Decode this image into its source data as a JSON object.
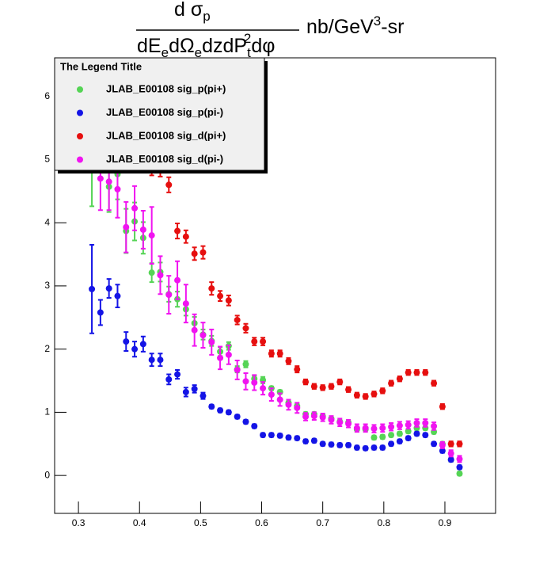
{
  "chart_data": {
    "type": "scatter",
    "title": {
      "numerator": [
        "d σ",
        "p"
      ],
      "denominator": [
        "dE",
        "e",
        "dΩ",
        "e",
        "dzdP",
        "t",
        "2",
        "dφ"
      ],
      "units": [
        "nb/GeV",
        "3",
        "-sr"
      ]
    },
    "legend": {
      "title": "The Legend Title",
      "position": "top-left"
    },
    "x": [
      0.322,
      0.336,
      0.35,
      0.364,
      0.378,
      0.392,
      0.406,
      0.42,
      0.434,
      0.448,
      0.462,
      0.476,
      0.49,
      0.504,
      0.518,
      0.532,
      0.546,
      0.56,
      0.574,
      0.588,
      0.602,
      0.616,
      0.63,
      0.644,
      0.658,
      0.672,
      0.686,
      0.7,
      0.714,
      0.728,
      0.742,
      0.756,
      0.77,
      0.784,
      0.798,
      0.812,
      0.826,
      0.84,
      0.854,
      0.868,
      0.882,
      0.896,
      0.91,
      0.924
    ],
    "series": [
      {
        "name": "JLAB_E00108 sig_p(pi+)",
        "color": "#55d455",
        "values": [
          4.86,
          null,
          4.57,
          4.77,
          3.87,
          4.02,
          3.76,
          3.21,
          3.22,
          2.87,
          2.79,
          2.63,
          2.41,
          2.23,
          2.13,
          1.96,
          2.05,
          1.68,
          1.76,
          1.53,
          1.51,
          1.38,
          1.32,
          1.15,
          1.1,
          0.97,
          0.97,
          0.94,
          0.9,
          0.85,
          0.84,
          0.73,
          0.73,
          0.6,
          0.61,
          0.64,
          0.66,
          0.7,
          0.75,
          0.75,
          0.69,
          0.5,
          0.25,
          0.03
        ],
        "errors": [
          0.6,
          null,
          0.4,
          0.4,
          0.35,
          0.3,
          0.25,
          0.15,
          0.15,
          0.12,
          0.12,
          0.1,
          0.1,
          0.08,
          0.08,
          0.07,
          0.06,
          0.05,
          0.05,
          0.05,
          0.05,
          0.03,
          0.03,
          0.03,
          0.03,
          0.03,
          0.03,
          0.03,
          0.03,
          0.03,
          0.03,
          0.03,
          0.03,
          0.03,
          0.03,
          0.03,
          0.03,
          0.03,
          0.03,
          0.03,
          0.03,
          0.03,
          0.03,
          0.03
        ]
      },
      {
        "name": "JLAB_E00108 sig_p(pi-)",
        "color": "#1414e6",
        "values": [
          2.95,
          2.58,
          2.96,
          2.84,
          2.12,
          2.0,
          2.08,
          1.83,
          1.83,
          1.52,
          1.6,
          1.32,
          1.37,
          1.26,
          1.09,
          1.03,
          1.0,
          0.93,
          0.85,
          0.78,
          0.64,
          0.64,
          0.63,
          0.6,
          0.59,
          0.54,
          0.55,
          0.5,
          0.49,
          0.48,
          0.48,
          0.44,
          0.43,
          0.44,
          0.44,
          0.5,
          0.54,
          0.59,
          0.66,
          0.64,
          0.5,
          0.39,
          0.25,
          0.13
        ],
        "errors": [
          0.7,
          0.2,
          0.15,
          0.18,
          0.15,
          0.12,
          0.12,
          0.1,
          0.1,
          0.08,
          0.07,
          0.07,
          0.06,
          0.05,
          0.03,
          0.03,
          0.03,
          0.03,
          0.03,
          0.03,
          0.03,
          0.03,
          0.03,
          0.03,
          0.03,
          0.03,
          0.03,
          0.03,
          0.03,
          0.03,
          0.03,
          0.03,
          0.03,
          0.03,
          0.03,
          0.03,
          0.03,
          0.03,
          0.03,
          0.03,
          0.03,
          0.03,
          0.03,
          0.03
        ]
      },
      {
        "name": "JLAB_E00108 sig_d(pi+)",
        "color": "#e60f0f",
        "values": [
          null,
          null,
          null,
          null,
          null,
          null,
          null,
          4.85,
          4.83,
          4.6,
          3.87,
          3.78,
          3.51,
          3.53,
          2.96,
          2.84,
          2.77,
          2.46,
          2.33,
          2.12,
          2.12,
          1.93,
          1.93,
          1.81,
          1.68,
          1.48,
          1.41,
          1.39,
          1.41,
          1.48,
          1.36,
          1.27,
          1.25,
          1.29,
          1.34,
          1.46,
          1.53,
          1.63,
          1.63,
          1.63,
          1.46,
          1.09,
          0.5,
          0.5
        ],
        "errors": [
          null,
          null,
          null,
          null,
          null,
          null,
          null,
          0.1,
          0.1,
          0.12,
          0.12,
          0.1,
          0.1,
          0.1,
          0.1,
          0.08,
          0.08,
          0.07,
          0.07,
          0.06,
          0.06,
          0.05,
          0.05,
          0.05,
          0.05,
          0.04,
          0.04,
          0.04,
          0.04,
          0.04,
          0.04,
          0.04,
          0.04,
          0.04,
          0.04,
          0.04,
          0.04,
          0.04,
          0.04,
          0.04,
          0.04,
          0.04,
          0.04,
          0.04
        ]
      },
      {
        "name": "JLAB_E00108 sig_d(pi-)",
        "color": "#f014f0",
        "values": [
          null,
          4.7,
          4.65,
          4.53,
          3.93,
          4.23,
          3.89,
          3.8,
          3.17,
          2.86,
          3.09,
          2.72,
          2.3,
          2.22,
          2.11,
          1.86,
          1.91,
          1.67,
          1.49,
          1.47,
          1.38,
          1.28,
          1.2,
          1.12,
          1.07,
          0.93,
          0.94,
          0.92,
          0.88,
          0.84,
          0.82,
          0.75,
          0.75,
          0.74,
          0.75,
          0.77,
          0.79,
          0.8,
          0.83,
          0.83,
          0.78,
          0.48,
          0.35,
          0.26
        ],
        "errors": [
          null,
          0.5,
          0.45,
          0.45,
          0.4,
          0.35,
          0.3,
          0.45,
          0.3,
          0.3,
          0.3,
          0.3,
          0.25,
          0.2,
          0.2,
          0.18,
          0.15,
          0.15,
          0.13,
          0.12,
          0.1,
          0.1,
          0.1,
          0.08,
          0.08,
          0.06,
          0.06,
          0.06,
          0.06,
          0.06,
          0.06,
          0.06,
          0.06,
          0.06,
          0.06,
          0.06,
          0.06,
          0.06,
          0.06,
          0.06,
          0.06,
          0.05,
          0.05,
          0.05
        ]
      }
    ],
    "xlim": [
      0.261,
      0.983
    ],
    "ylim": [
      -0.6,
      6.61
    ],
    "xticks": [
      0.3,
      0.4,
      0.5,
      0.6,
      0.7,
      0.8,
      0.9
    ],
    "yticks": [
      0,
      1,
      2,
      3,
      4,
      5,
      6
    ],
    "grid": false
  }
}
